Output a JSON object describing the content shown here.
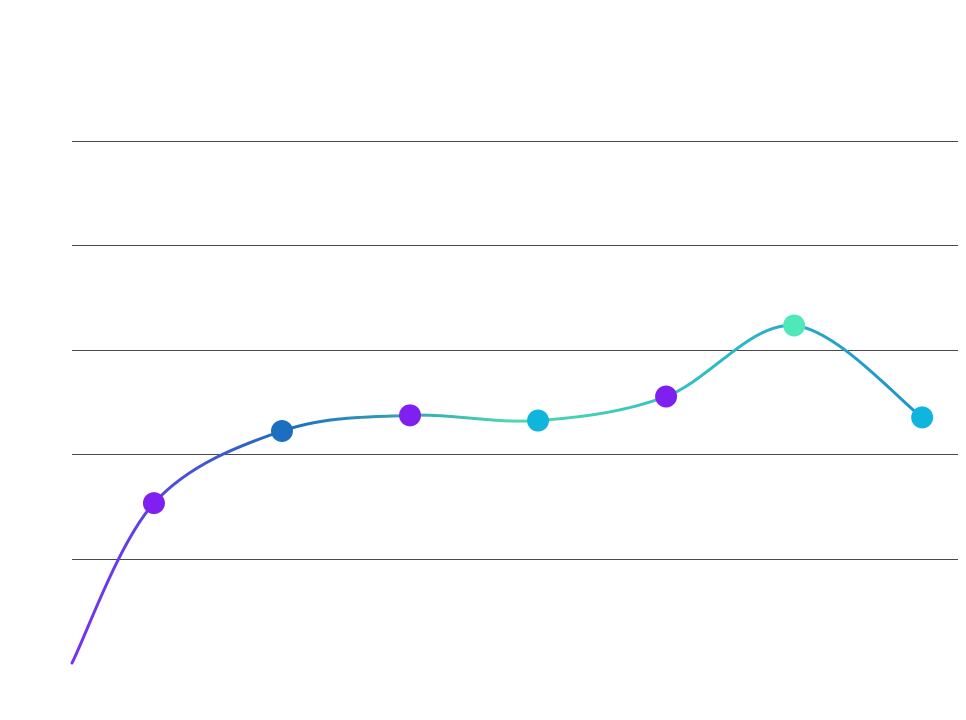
{
  "chart_data": {
    "type": "line",
    "title": "",
    "xlabel": "",
    "ylabel": "",
    "grid": true,
    "legend": "none",
    "xlim": [
      -0.64,
      6.28
    ],
    "ylim": [
      0,
      6
    ],
    "gridlines_y": [
      1,
      2,
      3,
      4,
      5
    ],
    "series": [
      {
        "curve": "smooth",
        "gradient_stops": [
          "#7a2ff0",
          "#1c6fc0",
          "#4fd8b0",
          "#2ab8c8",
          "#1c8ac8"
        ],
        "points": [
          {
            "x": 0,
            "y": 1.53,
            "color": "#7f1ff0"
          },
          {
            "x": 1,
            "y": 2.22,
            "color": "#1c6fc0"
          },
          {
            "x": 2,
            "y": 2.37,
            "color": "#7f1ff0"
          },
          {
            "x": 3,
            "y": 2.32,
            "color": "#0fb5dc"
          },
          {
            "x": 4,
            "y": 2.55,
            "color": "#7f1ff0"
          },
          {
            "x": 5,
            "y": 3.23,
            "color": "#4fe8b8"
          },
          {
            "x": 6,
            "y": 2.35,
            "color": "#0fb5dc"
          }
        ]
      }
    ]
  }
}
